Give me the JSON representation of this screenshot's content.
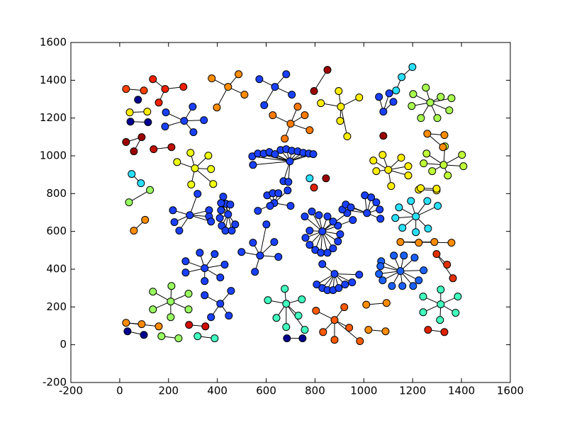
{
  "chart_data": {
    "type": "network",
    "xlim": [
      -200,
      1600
    ],
    "ylim": [
      -200,
      1600
    ],
    "xticks": [
      -200,
      0,
      200,
      400,
      600,
      800,
      1000,
      1200,
      1400,
      1600
    ],
    "yticks": [
      -200,
      0,
      200,
      400,
      600,
      800,
      1000,
      1200,
      1400,
      1600
    ],
    "edge_color": "#000000",
    "groups": [
      {
        "color": "#ff8c00",
        "x": [
          444,
          377,
          487,
          511,
          398
        ],
        "y": [
          1365,
          1410,
          1432,
          1324,
          1256
        ]
      },
      {
        "color": "#1a40ff",
        "x": [
          636,
          572,
          682,
          705,
          592
        ],
        "y": [
          1365,
          1406,
          1432,
          1324,
          1268
        ]
      },
      {
        "color": "#ff7a00",
        "x": [
          700,
          627,
          758,
          676,
          778,
          729
        ],
        "y": [
          1170,
          1215,
          1215,
          1091,
          1136,
          1260
        ]
      },
      {
        "color": "#ffee00",
        "x": [
          906,
          897,
          981,
          824,
          903,
          932
        ],
        "y": [
          1260,
          1343,
          1309,
          1279,
          1185,
          1103
        ]
      },
      {
        "color": "#1a40ff",
        "x": [
          264,
          189,
          186,
          302,
          345,
          299
        ],
        "y": [
          1185,
          1230,
          1155,
          1125,
          1189,
          1260
        ]
      },
      {
        "color": "#eeff10",
        "x": [
          308,
          290,
          363,
          374,
          383,
          293,
          235
        ],
        "y": [
          934,
          1016,
          1001,
          930,
          851,
          848,
          967
        ]
      },
      {
        "color": "#c0ff38",
        "x": [
          1327,
          1257,
          1332,
          1402,
          1408,
          1344,
          1280,
          1245
        ],
        "y": [
          952,
          1012,
          1050,
          1005,
          945,
          896,
          919,
          960
        ]
      },
      {
        "color": "#ffee00",
        "x": [
          1100,
          1039,
          1077,
          1182,
          1182,
          1112,
          1051,
          1153
        ],
        "y": [
          926,
          975,
          1005,
          945,
          896,
          840,
          919,
          990
        ]
      },
      {
        "color": "#a8ff50",
        "x": [
          1272,
          1202,
          1254,
          1315,
          1359,
          1350,
          1301,
          1234,
          1196
        ],
        "y": [
          1282,
          1327,
          1361,
          1312,
          1305,
          1241,
          1200,
          1200,
          1264
        ]
      },
      {
        "color": "#2ae0ff",
        "x": [
          1213,
          1144,
          1193,
          1260,
          1303,
          1263,
          1213,
          1158,
          1129
        ],
        "y": [
          679,
          727,
          761,
          761,
          735,
          615,
          596,
          619,
          671
        ]
      },
      {
        "color": "#1a60ff",
        "x": [
          1150,
          1071,
          1123,
          1164,
          1208,
          1245,
          1225,
          1202,
          1158,
          1115,
          1077,
          1062,
          1068
        ],
        "y": [
          390,
          442,
          472,
          472,
          461,
          394,
          341,
          311,
          311,
          311,
          341,
          375,
          416
        ]
      },
      {
        "color": "#40ffc0",
        "x": [
          682,
          607,
          676,
          746,
          732,
          642,
          682,
          758
        ],
        "y": [
          217,
          236,
          296,
          240,
          154,
          142,
          94,
          79
        ]
      },
      {
        "color": "#40ffc0",
        "x": [
          1315,
          1243,
          1315,
          1385,
          1376,
          1312,
          1243
        ],
        "y": [
          214,
          255,
          292,
          255,
          169,
          131,
          172
        ]
      },
      {
        "color": "#98ff60",
        "x": [
          209,
          136,
          212,
          282,
          282,
          209,
          136
        ],
        "y": [
          229,
          281,
          311,
          270,
          187,
          146,
          187
        ]
      },
      {
        "color": "#1a40ff",
        "x": [
          348,
          270,
          328,
          389,
          430,
          412,
          348,
          270
        ],
        "y": [
          405,
          442,
          487,
          480,
          424,
          356,
          337,
          382
        ]
      },
      {
        "color": "#1a40ff",
        "x": [
          412,
          348,
          456,
          447,
          374
        ],
        "y": [
          217,
          262,
          285,
          154,
          146
        ]
      },
      {
        "color": "#ff5a00",
        "x": [
          880,
          804,
          833,
          940,
          920,
          880,
          984
        ],
        "y": [
          131,
          180,
          67,
          90,
          199,
          26,
          19
        ]
      },
      {
        "color": "#1a40ff",
        "x": [
          830,
          758,
          778,
          761,
          778,
          801,
          824,
          851,
          874,
          894,
          903,
          894,
          874,
          851,
          816,
          787,
          932,
          955
        ],
        "y": [
          600,
          679,
          604,
          566,
          529,
          502,
          487,
          487,
          510,
          547,
          585,
          630,
          652,
          679,
          686,
          705,
          697,
          660
        ]
      },
      {
        "color": "#1a40ff",
        "x": [
          1013,
          1004,
          1030,
          1051,
          1065,
          1068,
          912,
          926,
          947
        ],
        "y": [
          697,
          791,
          780,
          754,
          716,
          667,
          716,
          742,
          727
        ]
      },
      {
        "color": "#1a40ff",
        "x": [
          880,
          807,
          830,
          851,
          874,
          897,
          923,
          952,
          981,
          830
        ],
        "y": [
          375,
          319,
          300,
          289,
          289,
          300,
          319,
          330,
          371,
          427
        ]
      },
      {
        "color": "#1a40ff",
        "x": [
          287,
          218,
          224,
          244,
          319,
          366,
          366,
          374
        ],
        "y": [
          686,
          712,
          649,
          604,
          799,
          712,
          679,
          652
        ]
      },
      {
        "color": "#1a40ff",
        "x": [
          444,
          424,
          436,
          415,
          410,
          418,
          433,
          459,
          473,
          415,
          453
        ],
        "y": [
          690,
          784,
          746,
          712,
          671,
          630,
          604,
          604,
          637,
          750,
          742
        ]
      },
      {
        "color": "#1a40ff",
        "x": [
          697,
          546,
          543,
          566,
          590,
          613,
          636,
          659,
          682,
          705,
          729,
          752,
          775,
          793,
          671,
          691
        ],
        "y": [
          971,
          952,
          997,
          1012,
          1012,
          1020,
          1009,
          1031,
          1035,
          1027,
          1024,
          1016,
          1012,
          1009,
          866,
          862
        ]
      },
      {
        "color": "#1a40ff",
        "x": [
          633,
          566,
          604,
          627,
          650,
          616,
          688,
          700
        ],
        "y": [
          750,
          709,
          791,
          802,
          802,
          735,
          817,
          735
        ]
      },
      {
        "color": "#1a40ff",
        "x": [
          575,
          499,
          546,
          633,
          650,
          554,
          601
        ],
        "y": [
          472,
          491,
          540,
          544,
          465,
          386,
          637
        ]
      },
      {
        "color": "#9a0000",
        "x": [
          851,
          796
        ],
        "y": [
          1455,
          1343
        ]
      },
      {
        "color": "#f02000",
        "x": [
          186,
          136,
          261,
          160
        ],
        "y": [
          1354,
          1406,
          1365,
          1282
        ]
      },
      {
        "color": "#ff4000",
        "x": [
          26,
          99
        ],
        "y": [
          1354,
          1346
        ]
      },
      {
        "color": "#000090",
        "x": [
          75
        ],
        "y": [
          1297
        ]
      },
      {
        "color": "#ffee00",
        "x": [
          41,
          113
        ],
        "y": [
          1230,
          1234
        ]
      },
      {
        "color": "#000090",
        "x": [
          44,
          116
        ],
        "y": [
          1181,
          1178
        ]
      },
      {
        "color": "#9a0000",
        "x": [
          90,
          26,
          58
        ],
        "y": [
          1099,
          1073,
          1024
        ]
      },
      {
        "color": "#c01000",
        "x": [
          139,
          212
        ],
        "y": [
          1035,
          1046
        ]
      },
      {
        "color": "#000090",
        "x": [
          32,
          99
        ],
        "y": [
          71,
          52
        ]
      },
      {
        "color": "#ff8c00",
        "x": [
          26,
          90,
          160
        ],
        "y": [
          116,
          109,
          97
        ]
      },
      {
        "color": "#98ff60",
        "x": [
          171,
          241
        ],
        "y": [
          45,
          34
        ]
      },
      {
        "color": "#d01000",
        "x": [
          284,
          351
        ],
        "y": [
          105,
          97
        ]
      },
      {
        "color": "#40ffc0",
        "x": [
          319,
          389
        ],
        "y": [
          45,
          34
        ]
      },
      {
        "color": "#000090",
        "x": [
          685,
          749
        ],
        "y": [
          34,
          34
        ]
      },
      {
        "color": "#ff8c00",
        "x": [
          1019,
          1089
        ],
        "y": [
          79,
          71
        ]
      },
      {
        "color": "#e02000",
        "x": [
          1263,
          1330
        ],
        "y": [
          79,
          67
        ]
      },
      {
        "color": "#e03000",
        "x": [
          1298,
          1341,
          1365
        ],
        "y": [
          480,
          424,
          352
        ]
      },
      {
        "color": "#ff8c00",
        "x": [
          1150,
          1225,
          1289,
          1359
        ],
        "y": [
          544,
          540,
          544,
          540
        ]
      },
      {
        "color": "#ffee00",
        "x": [
          1225,
          1298
        ],
        "y": [
          821,
          817
        ]
      },
      {
        "color": "#ff8c00",
        "x": [
          1260,
          1330,
          1324
        ],
        "y": [
          1117,
          1110,
          1046
        ]
      },
      {
        "color": "#2ae0ff",
        "x": [
          1155,
          1199,
          1132
        ],
        "y": [
          1417,
          1470,
          1346
        ]
      },
      {
        "color": "#1a40ff",
        "x": [
          1080,
          1062,
          1121,
          1104
        ],
        "y": [
          1234,
          1312,
          1286,
          1331
        ]
      },
      {
        "color": "#9a0000",
        "x": [
          1080
        ],
        "y": [
          1106
        ]
      },
      {
        "color": "#2ae0ff",
        "x": [
          778
        ],
        "y": [
          881
        ]
      },
      {
        "color": "#e02000",
        "x": [
          796
        ],
        "y": [
          832
        ]
      },
      {
        "color": "#9a0000",
        "x": [
          845
        ],
        "y": [
          881
        ]
      },
      {
        "color": "#2ae0ff",
        "x": [
          49,
          87
        ],
        "y": [
          904,
          855
        ]
      },
      {
        "color": "#98ff60",
        "x": [
          38,
          124
        ],
        "y": [
          754,
          819
        ]
      },
      {
        "color": "#ff8c00",
        "x": [
          58,
          104
        ],
        "y": [
          604,
          661
        ]
      },
      {
        "color": "#ffee00",
        "x": [
          1233,
          1298
        ],
        "y": [
          829,
          826
        ]
      },
      {
        "color": "#ff8c00",
        "x": [
          1010,
          1093
        ],
        "y": [
          212,
          221
        ]
      }
    ]
  }
}
